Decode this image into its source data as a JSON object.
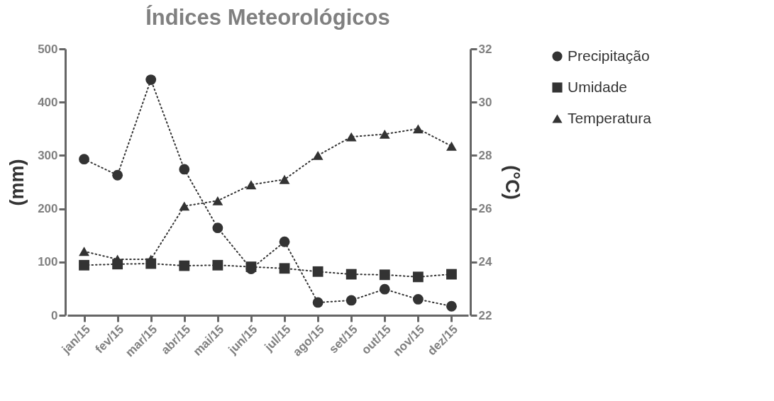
{
  "chart_data": {
    "type": "line",
    "title": "Índices Meteorológicos",
    "ylabel": "(mm)",
    "y2label": "(°C)",
    "categories": [
      "jan/15",
      "fev/15",
      "mar/15",
      "abr/15",
      "mai/15",
      "jun/15",
      "jul/15",
      "ago/15",
      "set/15",
      "out/15",
      "nov/15",
      "dez/15"
    ],
    "series": [
      {
        "name": "Precipitação",
        "color": "#333333",
        "marker": "circle",
        "values": [
          293,
          263,
          442,
          274,
          164,
          87,
          138,
          24,
          28,
          49,
          30,
          17
        ]
      },
      {
        "name": "Umidade",
        "color": "#333333",
        "marker": "square",
        "values": [
          94,
          96,
          97,
          93,
          94,
          91,
          88,
          82,
          77,
          76,
          72,
          77
        ]
      },
      {
        "name": "Temperatura",
        "color": "#333333",
        "marker": "triangle",
        "axis": "y2",
        "values": [
          24.4,
          24.1,
          24.1,
          26.1,
          26.3,
          26.9,
          27.1,
          28.0,
          28.7,
          28.8,
          29.0,
          28.35
        ]
      }
    ],
    "ylim": [
      0,
      500
    ],
    "yticks": [
      0,
      100,
      200,
      300,
      400,
      500
    ],
    "y2lim": [
      22,
      32
    ],
    "y2ticks": [
      22,
      24,
      26,
      28,
      30,
      32
    ],
    "line_style": "dotted",
    "legend": "right",
    "grid": false
  }
}
